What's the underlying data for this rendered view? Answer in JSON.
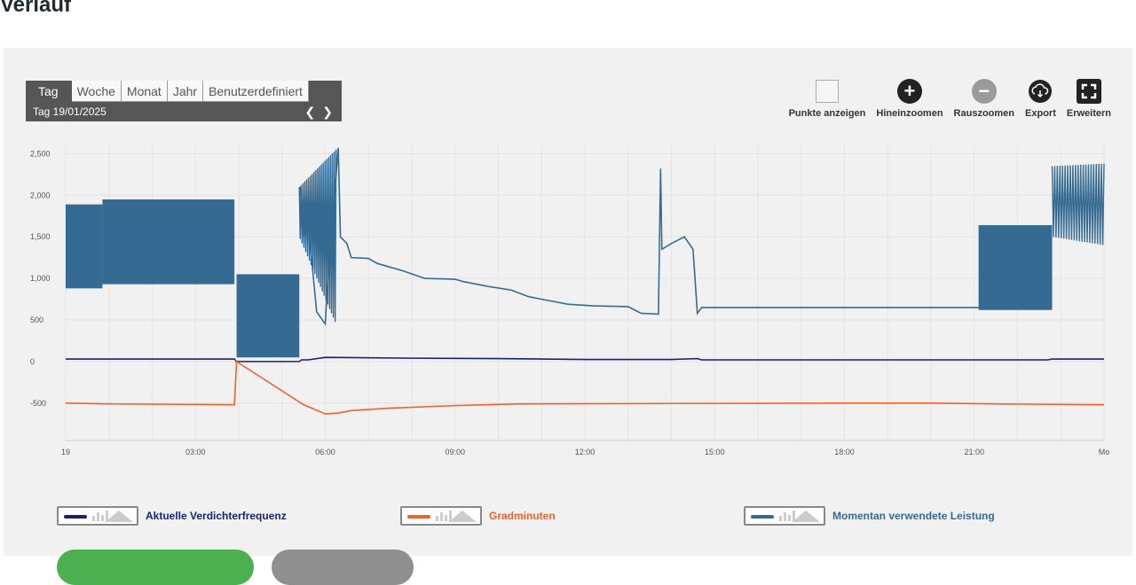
{
  "page": {
    "title": "Verlauf"
  },
  "period": {
    "tabs": [
      "Tag",
      "Woche",
      "Monat",
      "Jahr",
      "Benutzerdefiniert"
    ],
    "active_tab": "Tag",
    "date_label": "Tag  19/01/2025",
    "prev_icon": "chevron-left-icon",
    "next_icon": "chevron-right-icon"
  },
  "toolbar": {
    "points_label": "Punkte anzeigen",
    "zoom_in_label": "Hineinzoomen",
    "zoom_out_label": "Rauszoomen",
    "export_label": "Export",
    "expand_label": "Erweitern",
    "zoom_in_symbol": "+",
    "zoom_out_symbol": "−"
  },
  "legend": [
    {
      "name": "Aktuelle Verdichterfrequenz",
      "color": "#1b1f73"
    },
    {
      "name": "Gradminuten",
      "color": "#f0622a"
    },
    {
      "name": "Momentan verwendete Leistung",
      "color": "#356a92"
    }
  ],
  "chart_data": {
    "type": "line",
    "y_ticks": [
      "2,500",
      "2,000",
      "1,500",
      "1,000",
      "500",
      "0",
      "-500"
    ],
    "y_tick_values": [
      2500,
      2000,
      1500,
      1000,
      500,
      0,
      -500
    ],
    "x_ticks": [
      "19",
      "03:00",
      "06:00",
      "09:00",
      "12:00",
      "15:00",
      "18:00",
      "21:00",
      "Mo"
    ],
    "x_tick_hours": [
      0,
      3,
      6,
      9,
      12,
      15,
      18,
      21,
      24
    ],
    "xlim": [
      0,
      24
    ],
    "ylim": [
      -950,
      2600
    ],
    "grid": true,
    "series": [
      {
        "name": "Momentan verwendete Leistung",
        "color": "#356a92",
        "bands": [
          {
            "x0": 0.0,
            "x1": 0.85,
            "low": 880,
            "high": 1890
          },
          {
            "x0": 0.85,
            "x1": 3.9,
            "low": 930,
            "high": 1950
          },
          {
            "x0": 3.95,
            "x1": 5.4,
            "low": 50,
            "high": 1050
          },
          {
            "x0": 21.1,
            "x1": 22.8,
            "low": 620,
            "high": 1640
          }
        ],
        "spikes": [
          {
            "x0": 5.4,
            "x1": 6.25,
            "low": [
              1500,
              450
            ],
            "high": [
              2100,
              2550
            ]
          },
          {
            "x0": 22.8,
            "x1": 24.0,
            "low": [
              1500,
              1400
            ],
            "high": [
              2350,
              2380
            ]
          }
        ],
        "points": [
          [
            5.42,
            2100
          ],
          [
            5.5,
            1500
          ],
          [
            5.6,
            1700
          ],
          [
            5.8,
            600
          ],
          [
            6.0,
            450
          ],
          [
            6.1,
            1400
          ],
          [
            6.2,
            1900
          ],
          [
            6.3,
            2570
          ],
          [
            6.35,
            1500
          ],
          [
            6.5,
            1420
          ],
          [
            6.6,
            1250
          ],
          [
            7.0,
            1240
          ],
          [
            7.2,
            1180
          ],
          [
            7.8,
            1090
          ],
          [
            8.3,
            1000
          ],
          [
            9.0,
            990
          ],
          [
            9.2,
            960
          ],
          [
            9.8,
            900
          ],
          [
            10.3,
            860
          ],
          [
            10.7,
            780
          ],
          [
            11.1,
            740
          ],
          [
            11.6,
            690
          ],
          [
            12.2,
            670
          ],
          [
            13.0,
            660
          ],
          [
            13.3,
            580
          ],
          [
            13.7,
            570
          ],
          [
            13.75,
            2320
          ],
          [
            13.78,
            1350
          ],
          [
            14.0,
            1420
          ],
          [
            14.3,
            1500
          ],
          [
            14.5,
            1350
          ],
          [
            14.6,
            580
          ],
          [
            14.7,
            650
          ],
          [
            16.0,
            650
          ],
          [
            20.0,
            650
          ],
          [
            21.1,
            650
          ]
        ]
      },
      {
        "name": "Aktuelle Verdichterfrequenz",
        "color": "#1b1f73",
        "points": [
          [
            0,
            30
          ],
          [
            3.9,
            30
          ],
          [
            3.95,
            0
          ],
          [
            5.4,
            0
          ],
          [
            5.45,
            20
          ],
          [
            5.6,
            20
          ],
          [
            6.0,
            50
          ],
          [
            8.0,
            40
          ],
          [
            10.0,
            35
          ],
          [
            12.0,
            25
          ],
          [
            14.0,
            25
          ],
          [
            14.6,
            35
          ],
          [
            14.7,
            20
          ],
          [
            18.0,
            20
          ],
          [
            22.7,
            20
          ],
          [
            22.8,
            30
          ],
          [
            24,
            30
          ]
        ]
      },
      {
        "name": "Gradminuten",
        "color": "#f0622a",
        "points": [
          [
            0,
            -500
          ],
          [
            1.0,
            -510
          ],
          [
            3.9,
            -520
          ],
          [
            3.95,
            0
          ],
          [
            5.5,
            -520
          ],
          [
            6.0,
            -630
          ],
          [
            6.3,
            -620
          ],
          [
            6.6,
            -590
          ],
          [
            7.5,
            -560
          ],
          [
            9.0,
            -530
          ],
          [
            10.5,
            -510
          ],
          [
            14.0,
            -505
          ],
          [
            18.0,
            -500
          ],
          [
            20.0,
            -500
          ],
          [
            21.5,
            -510
          ],
          [
            24,
            -520
          ]
        ]
      }
    ]
  }
}
